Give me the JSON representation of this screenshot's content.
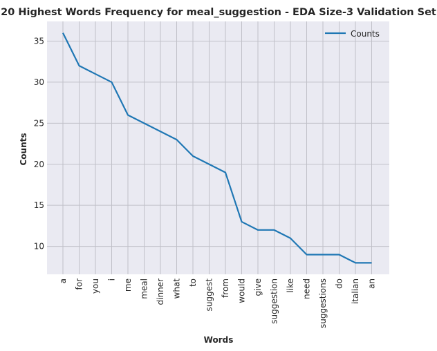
{
  "chart_data": {
    "type": "line",
    "title": "20 Highest Words Frequency for meal_suggestion - EDA Size-3 Validation Set",
    "xlabel": "Words",
    "ylabel": "Counts",
    "categories": [
      "a",
      "for",
      "you",
      "i",
      "me",
      "meal",
      "dinner",
      "what",
      "to",
      "suggest",
      "from",
      "would",
      "give",
      "suggestion",
      "like",
      "need",
      "suggestions",
      "do",
      "italian",
      "an"
    ],
    "series": [
      {
        "name": "Counts",
        "values": [
          36,
          32,
          31,
          30,
          26,
          25,
          24,
          23,
          21,
          20,
          19,
          13,
          12,
          12,
          11,
          9,
          9,
          9,
          8,
          8
        ],
        "color": "#1f77b4"
      }
    ],
    "ylim": [
      6.6,
      37.4
    ],
    "yticks": [
      10,
      15,
      20,
      25,
      30,
      35
    ],
    "grid": true,
    "legend_position": "upper right",
    "style": {
      "plot_background": "#eaeaf2",
      "grid_color": "#c0c0c8"
    }
  }
}
